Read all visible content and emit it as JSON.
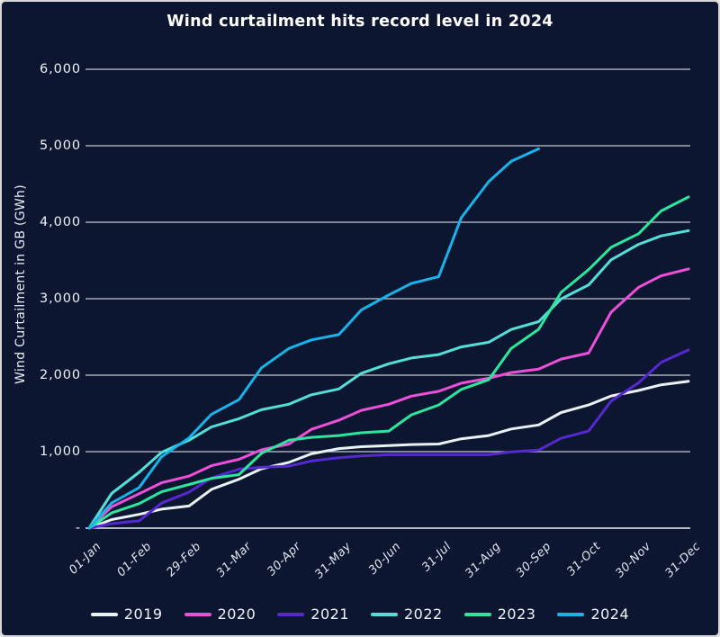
{
  "colors": {
    "background": "#0d1631",
    "grid": "#c3c8d2",
    "axis_line": "#eceef4",
    "title_text": "#ffffff",
    "tick_text": "#e7ebf3"
  },
  "chart_data": {
    "type": "line",
    "title": "Wind curtailment hits record level in 2024",
    "xlabel": "",
    "ylabel": "Wind Curtailment in GB (GWh)",
    "ylim": [
      0,
      6000
    ],
    "grid": true,
    "legend_position": "bottom",
    "x_tick_labels": [
      "01-Jan",
      "01-Feb",
      "29-Feb",
      "31-Mar",
      "30-Apr",
      "31-May",
      "30-Jun",
      "31-Jul",
      "31-Aug",
      "30-Sep",
      "31-Oct",
      "30-Nov",
      "31-Dec"
    ],
    "y_ticks": [
      {
        "label": "6,000",
        "value": 6000
      },
      {
        "label": "5,000",
        "value": 5000
      },
      {
        "label": "4,000",
        "value": 4000
      },
      {
        "label": "3,000",
        "value": 3000
      },
      {
        "label": "2,000",
        "value": 2000
      },
      {
        "label": "1,000",
        "value": 1000
      },
      {
        "label": "-",
        "value": 0
      }
    ],
    "series": [
      {
        "name": "2019",
        "color": "#e9f1f3",
        "values": [
          0,
          180,
          290,
          640,
          860,
          1040,
          1080,
          1100,
          1210,
          1350,
          1610,
          1800,
          1920
        ]
      },
      {
        "name": "2020",
        "color": "#ee4fd9",
        "values": [
          0,
          450,
          680,
          900,
          1100,
          1410,
          1620,
          1790,
          1960,
          2080,
          2290,
          3150,
          3390
        ]
      },
      {
        "name": "2021",
        "color": "#5528d0",
        "values": [
          0,
          95,
          470,
          770,
          810,
          920,
          960,
          960,
          960,
          1020,
          1270,
          1900,
          2330
        ]
      },
      {
        "name": "2022",
        "color": "#54ded8",
        "values": [
          0,
          730,
          1150,
          1430,
          1620,
          1820,
          2150,
          2270,
          2430,
          2700,
          3180,
          3710,
          3890
        ]
      },
      {
        "name": "2023",
        "color": "#2de69e",
        "values": [
          0,
          320,
          570,
          700,
          1150,
          1210,
          1270,
          1610,
          1940,
          2600,
          3380,
          3850,
          4330
        ]
      },
      {
        "name": "2024",
        "color": "#18b3e9",
        "values": [
          0,
          530,
          1180,
          1680,
          2350,
          2530,
          3050,
          3290,
          4530,
          4960,
          null,
          null,
          null
        ]
      }
    ]
  }
}
